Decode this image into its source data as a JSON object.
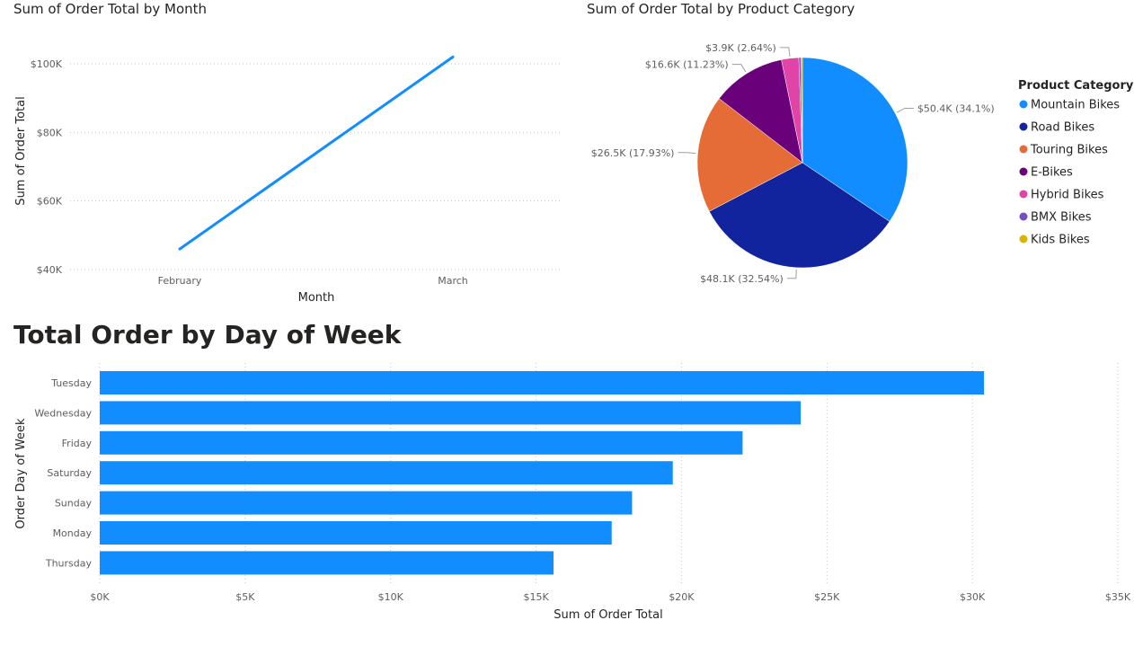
{
  "chart_data": [
    {
      "type": "line",
      "title": "Sum of Order Total by Month",
      "xlabel": "Month",
      "ylabel": "Sum of Order Total",
      "categories": [
        "February",
        "March"
      ],
      "series": [
        {
          "values": [
            46000,
            102000
          ]
        }
      ],
      "ylim": [
        40000,
        100000
      ],
      "yticks": [
        "$40K",
        "$60K",
        "$80K",
        "$100K"
      ],
      "ytick_values": [
        40000,
        60000,
        80000,
        100000
      ],
      "color": "#118dff",
      "grid": true
    },
    {
      "type": "pie",
      "title": "Sum of Order Total by Product Category",
      "legend_title": "Product Category",
      "legend_position": "right",
      "slices": [
        {
          "name": "Mountain Bikes",
          "value": 50.4,
          "label": "$50.4K (34.1%)",
          "color": "#118dff"
        },
        {
          "name": "Road Bikes",
          "value": 48.1,
          "label": "$48.1K (32.54%)",
          "color": "#12239e"
        },
        {
          "name": "Touring Bikes",
          "value": 26.5,
          "label": "$26.5K (17.93%)",
          "color": "#e66c37"
        },
        {
          "name": "E-Bikes",
          "value": 16.6,
          "label": "$16.6K (11.23%)",
          "color": "#6b007b"
        },
        {
          "name": "Hybrid Bikes",
          "value": 3.9,
          "label": "$3.9K (2.64%)",
          "color": "#e044a7"
        },
        {
          "name": "BMX Bikes",
          "value": 0.5,
          "label": "",
          "color": "#744ec2"
        },
        {
          "name": "Kids Bikes",
          "value": 0.3,
          "label": "",
          "color": "#d9b300"
        }
      ]
    },
    {
      "type": "bar",
      "orientation": "horizontal",
      "title": "Total Order by Day of Week",
      "xlabel": "Sum of Order Total",
      "ylabel": "Order Day of Week",
      "categories": [
        "Tuesday",
        "Wednesday",
        "Friday",
        "Saturday",
        "Sunday",
        "Monday",
        "Thursday"
      ],
      "values": [
        30400,
        24100,
        22100,
        19700,
        18300,
        17600,
        15600
      ],
      "xlim": [
        0,
        35000
      ],
      "xticks": [
        "$0K",
        "$5K",
        "$10K",
        "$15K",
        "$20K",
        "$25K",
        "$30K",
        "$35K"
      ],
      "xtick_values": [
        0,
        5000,
        10000,
        15000,
        20000,
        25000,
        30000,
        35000
      ],
      "color": "#118dff",
      "grid": true
    }
  ]
}
